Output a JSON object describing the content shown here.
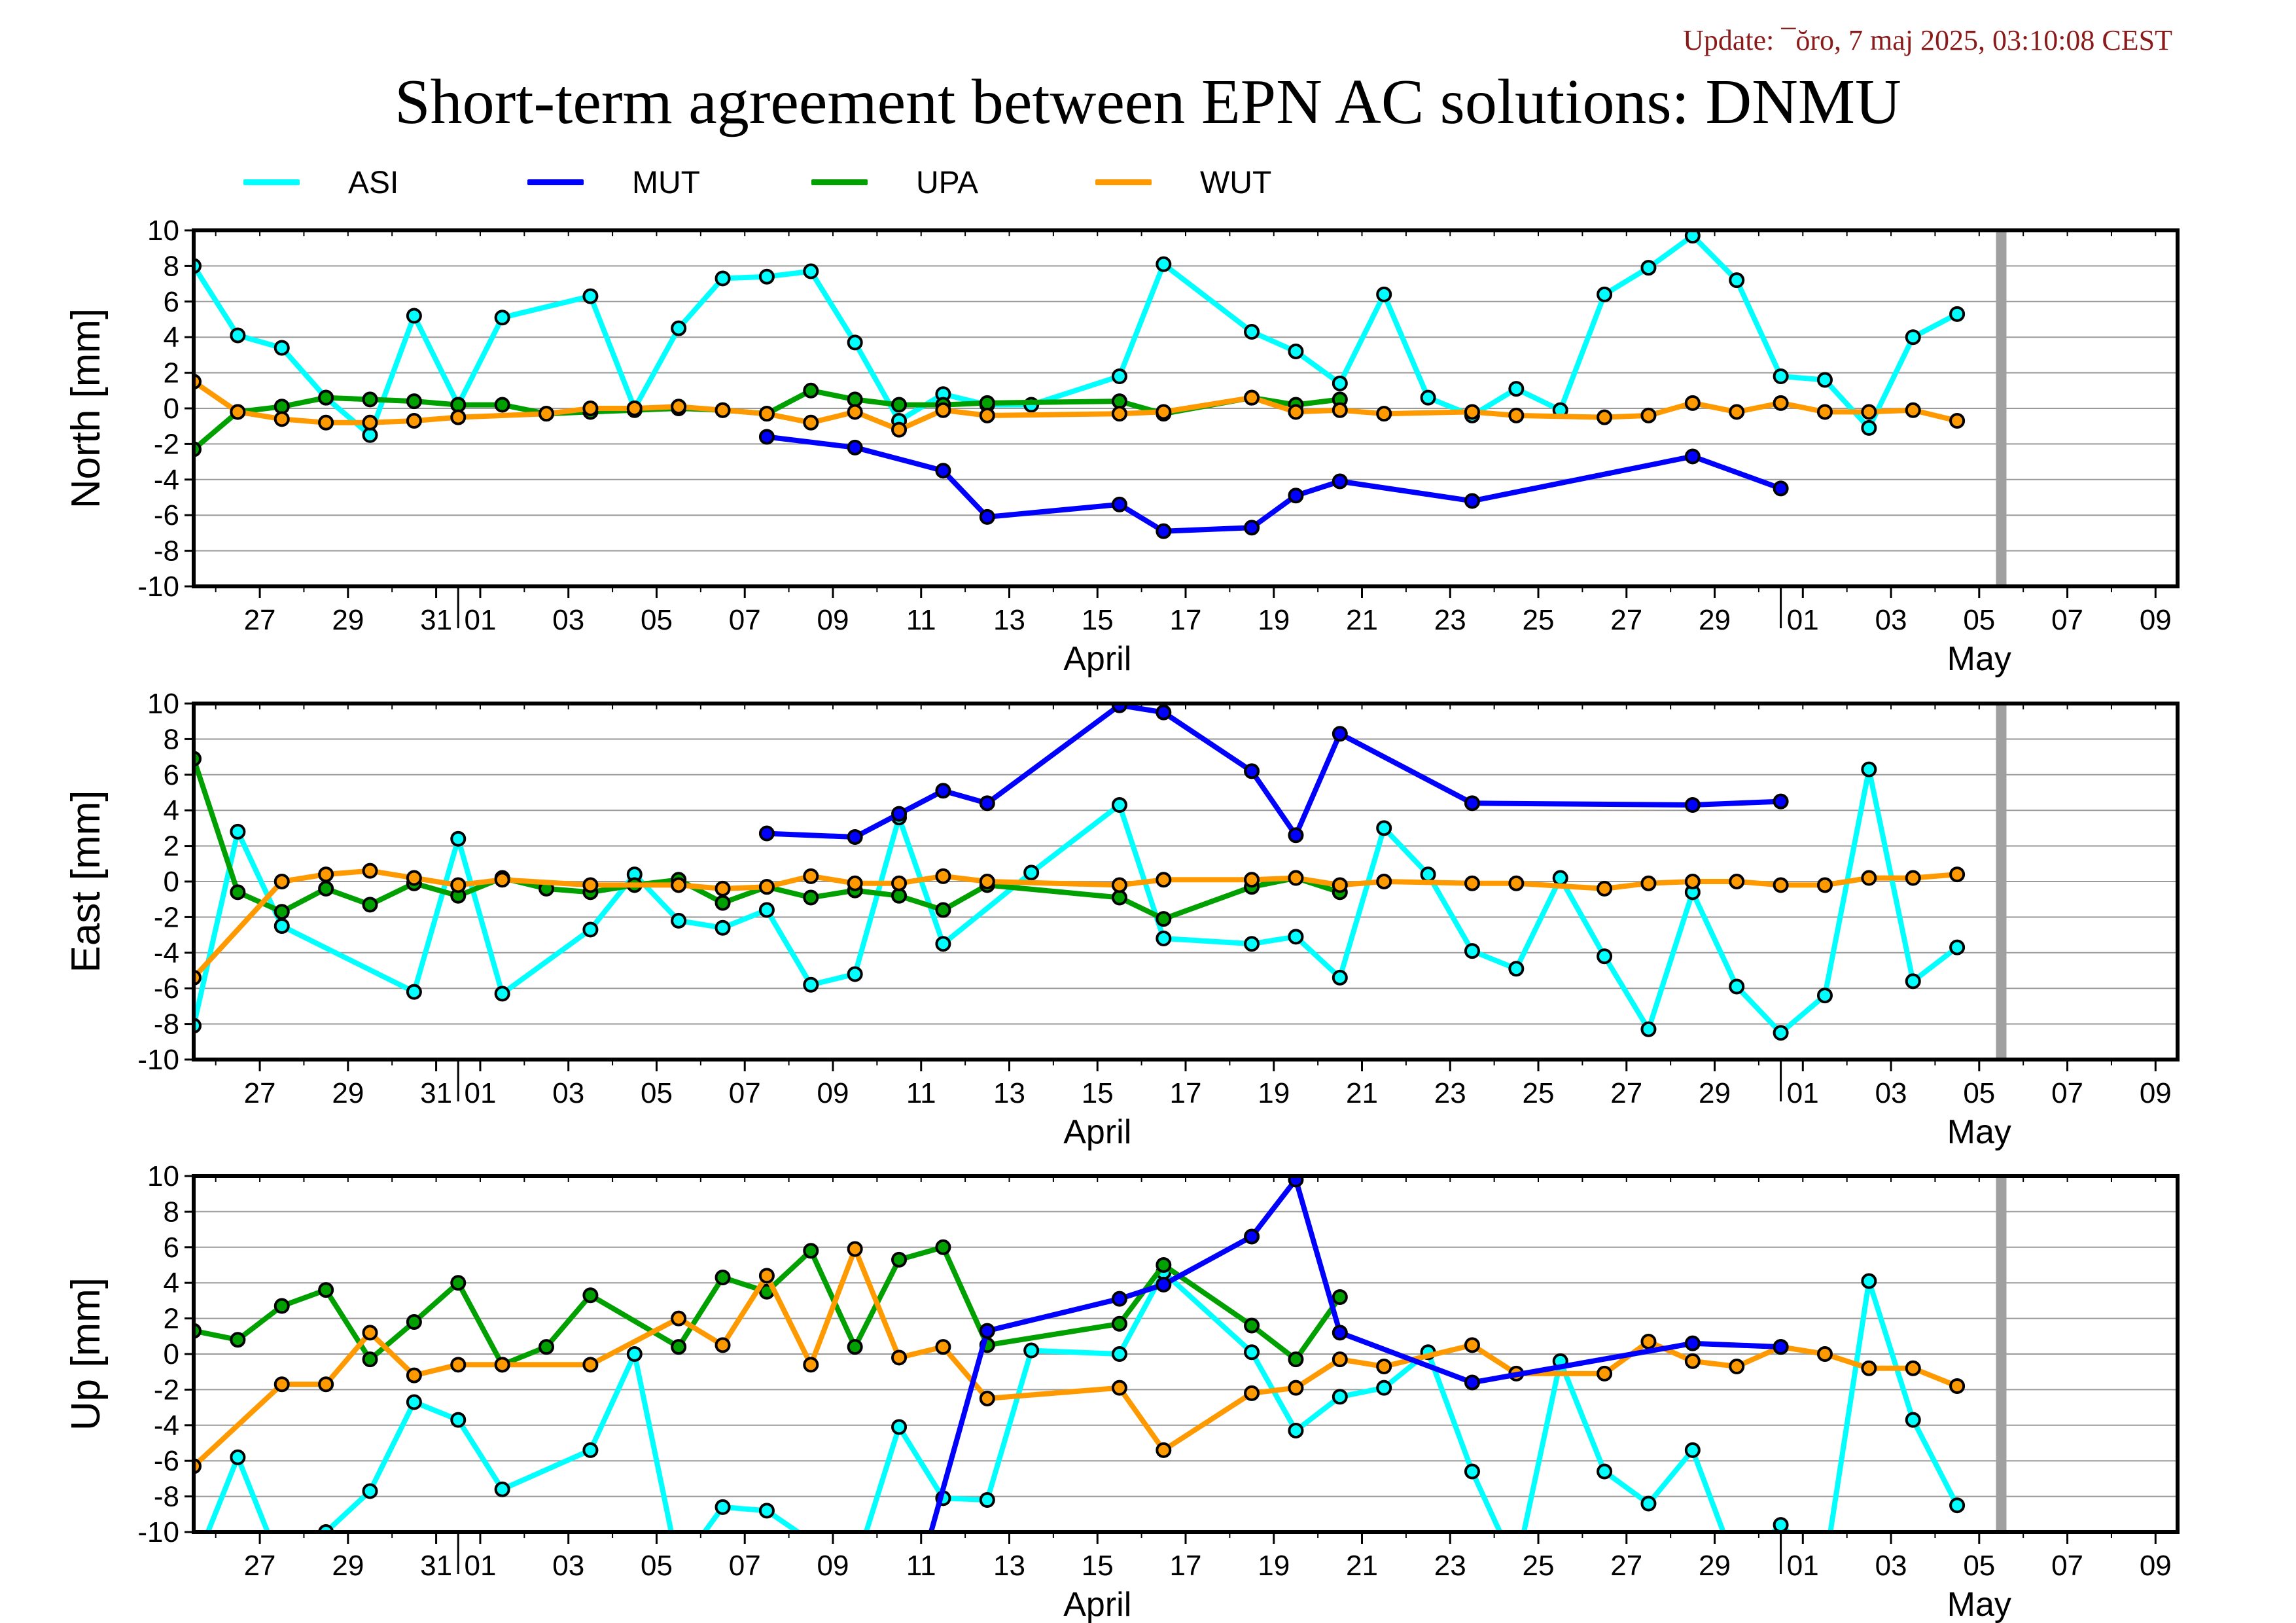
{
  "header": {
    "update_text": "Update: ¯ŏro, 7 maj 2025, 03:10:08 CEST",
    "title": "Short-term agreement between EPN AC solutions: DNMU"
  },
  "legend": [
    {
      "name": "ASI",
      "color": "#00ffff"
    },
    {
      "name": "MUT",
      "color": "#0000ff"
    },
    {
      "name": "UPA",
      "color": "#00a000"
    },
    {
      "name": "WUT",
      "color": "#ff9900"
    }
  ],
  "x_axis": {
    "ticks": [
      {
        "day": -4,
        "label": "27"
      },
      {
        "day": -2,
        "label": "29"
      },
      {
        "day": 0,
        "label": "31"
      },
      {
        "day": 1,
        "label": "01"
      },
      {
        "day": 3,
        "label": "03"
      },
      {
        "day": 5,
        "label": "05"
      },
      {
        "day": 7,
        "label": "07"
      },
      {
        "day": 9,
        "label": "09"
      },
      {
        "day": 11,
        "label": "11"
      },
      {
        "day": 13,
        "label": "13"
      },
      {
        "day": 15,
        "label": "15"
      },
      {
        "day": 17,
        "label": "17"
      },
      {
        "day": 19,
        "label": "19"
      },
      {
        "day": 21,
        "label": "21"
      },
      {
        "day": 23,
        "label": "23"
      },
      {
        "day": 25,
        "label": "25"
      },
      {
        "day": 27,
        "label": "27"
      },
      {
        "day": 29,
        "label": "29"
      },
      {
        "day": 31,
        "label": "01"
      },
      {
        "day": 33,
        "label": "03"
      },
      {
        "day": 35,
        "label": "05"
      },
      {
        "day": 37,
        "label": "07"
      },
      {
        "day": 39,
        "label": "09"
      }
    ],
    "month_labels": [
      {
        "day": 15,
        "label": "April"
      },
      {
        "day": 35,
        "label": "May"
      }
    ],
    "month_boundaries": [
      0.5,
      30.5
    ],
    "current_day_marker": 35.5
  },
  "chart_data": [
    {
      "type": "line",
      "ylabel": "North [mm]",
      "ylim": [
        -10,
        10
      ],
      "yticks": [
        10,
        8,
        6,
        4,
        2,
        0,
        -2,
        -4,
        -6,
        -8,
        -10
      ],
      "xlim": [
        -5.5,
        39.5
      ],
      "x_unit": "day (0 = 31 March 2025)",
      "series": [
        {
          "name": "ASI",
          "x": [
            -5.5,
            -4.5,
            -3.5,
            -2.5,
            -1.5,
            -0.5,
            0.5,
            1.5,
            3.5,
            4.5,
            5.5,
            6.5,
            7.5,
            8.5,
            9.5,
            10.5,
            11.5,
            12.5,
            13.5,
            15.5,
            16.5,
            18.5,
            19.5,
            20.5,
            21.5,
            22.5,
            23.5,
            24.5,
            25.5,
            26.5,
            27.5,
            28.5,
            29.5,
            30.5,
            31.5,
            32.5,
            33.5,
            34.5
          ],
          "values": [
            8.0,
            4.1,
            3.4,
            0.6,
            -1.5,
            5.2,
            0.2,
            5.1,
            6.3,
            0.0,
            4.5,
            7.3,
            7.4,
            7.7,
            3.7,
            -0.7,
            0.8,
            0.2,
            0.2,
            1.8,
            8.1,
            4.3,
            3.2,
            1.4,
            6.4,
            0.6,
            -0.4,
            1.1,
            -0.1,
            6.4,
            7.9,
            9.7,
            7.2,
            1.8,
            1.6,
            -1.1,
            4.0,
            5.3
          ]
        },
        {
          "name": "MUT",
          "x": [
            7.5,
            9.5,
            11.5,
            12.5,
            15.5,
            16.5,
            18.5,
            19.5,
            20.5,
            23.5,
            28.5,
            30.5
          ],
          "values": [
            -1.6,
            -2.2,
            -3.5,
            -6.1,
            -5.4,
            -6.9,
            -6.7,
            -4.9,
            -4.1,
            -5.2,
            -2.7,
            -4.5
          ]
        },
        {
          "name": "UPA",
          "x": [
            -5.5,
            -4.5,
            -3.5,
            -2.5,
            -1.5,
            -0.5,
            0.5,
            1.5,
            2.5,
            3.5,
            4.5,
            5.5,
            6.5,
            7.5,
            8.5,
            9.5,
            10.5,
            11.5,
            12.5,
            15.5,
            16.5,
            18.5,
            19.5,
            20.5
          ],
          "values": [
            -2.3,
            -0.2,
            0.1,
            0.6,
            0.5,
            0.4,
            0.2,
            0.2,
            -0.3,
            -0.2,
            -0.1,
            0.0,
            -0.1,
            -0.3,
            1.0,
            0.5,
            0.2,
            0.2,
            0.3,
            0.4,
            -0.3,
            0.6,
            0.2,
            0.5
          ]
        },
        {
          "name": "WUT",
          "x": [
            -5.5,
            -4.5,
            -3.5,
            -2.5,
            -1.5,
            -0.5,
            0.5,
            2.5,
            3.5,
            4.5,
            5.5,
            6.5,
            7.5,
            8.5,
            9.5,
            10.5,
            11.5,
            12.5,
            15.5,
            16.5,
            18.5,
            19.5,
            20.5,
            21.5,
            23.5,
            24.5,
            26.5,
            27.5,
            28.5,
            29.5,
            30.5,
            31.5,
            32.5,
            33.5,
            34.5
          ],
          "values": [
            1.5,
            -0.2,
            -0.6,
            -0.8,
            -0.8,
            -0.7,
            -0.5,
            -0.3,
            0.0,
            0.0,
            0.1,
            -0.1,
            -0.3,
            -0.8,
            -0.2,
            -1.2,
            -0.1,
            -0.4,
            -0.3,
            -0.2,
            0.6,
            -0.2,
            -0.1,
            -0.3,
            -0.2,
            -0.4,
            -0.5,
            -0.4,
            0.3,
            -0.2,
            0.3,
            -0.2,
            -0.2,
            -0.1,
            -0.7
          ]
        }
      ]
    },
    {
      "type": "line",
      "ylabel": "East [mm]",
      "ylim": [
        -10,
        10
      ],
      "yticks": [
        10,
        8,
        6,
        4,
        2,
        0,
        -2,
        -4,
        -6,
        -8,
        -10
      ],
      "xlim": [
        -5.5,
        39.5
      ],
      "x_unit": "day (0 = 31 March 2025)",
      "series": [
        {
          "name": "ASI",
          "x": [
            -5.5,
            -4.5,
            -3.5,
            -0.5,
            0.5,
            1.5,
            3.5,
            4.5,
            5.5,
            6.5,
            7.5,
            8.5,
            9.5,
            10.5,
            11.5,
            13.5,
            15.5,
            16.5,
            18.5,
            19.5,
            20.5,
            21.5,
            22.5,
            23.5,
            24.5,
            25.5,
            26.5,
            27.5,
            28.5,
            29.5,
            30.5,
            31.5,
            32.5,
            33.5,
            34.5
          ],
          "values": [
            -8.1,
            2.8,
            -2.5,
            -6.2,
            2.4,
            -6.3,
            -2.7,
            0.4,
            -2.2,
            -2.6,
            -1.6,
            -5.8,
            -5.2,
            3.6,
            -3.5,
            0.5,
            4.3,
            -3.2,
            -3.5,
            -3.1,
            -5.4,
            3.0,
            0.4,
            -3.9,
            -4.9,
            0.2,
            -4.2,
            -8.3,
            -0.6,
            -5.9,
            -8.5,
            -6.4,
            6.3,
            -5.6,
            -3.7
          ]
        },
        {
          "name": "MUT",
          "x": [
            7.5,
            9.5,
            10.5,
            11.5,
            12.5,
            15.5,
            16.5,
            18.5,
            19.5,
            20.5,
            23.5,
            28.5,
            30.5
          ],
          "values": [
            2.7,
            2.5,
            3.8,
            5.1,
            4.4,
            9.9,
            9.5,
            6.2,
            2.6,
            8.3,
            4.4,
            4.3,
            4.5
          ]
        },
        {
          "name": "UPA",
          "x": [
            -5.5,
            -4.5,
            -3.5,
            -2.5,
            -1.5,
            -0.5,
            0.5,
            1.5,
            2.5,
            3.5,
            4.5,
            5.5,
            6.5,
            7.5,
            8.5,
            9.5,
            10.5,
            11.5,
            12.5,
            15.5,
            16.5,
            18.5,
            19.5,
            20.5
          ],
          "values": [
            6.9,
            -0.6,
            -1.7,
            -0.4,
            -1.3,
            -0.1,
            -0.8,
            0.2,
            -0.4,
            -0.6,
            -0.2,
            0.1,
            -1.2,
            -0.3,
            -0.9,
            -0.5,
            -0.8,
            -1.6,
            -0.2,
            -0.9,
            -2.1,
            -0.3,
            0.2,
            -0.6
          ]
        },
        {
          "name": "WUT",
          "x": [
            -5.5,
            -3.5,
            -2.5,
            -1.5,
            -0.5,
            0.5,
            1.5,
            3.5,
            5.5,
            6.5,
            7.5,
            8.5,
            9.5,
            10.5,
            11.5,
            12.5,
            15.5,
            16.5,
            18.5,
            19.5,
            20.5,
            21.5,
            23.5,
            24.5,
            26.5,
            27.5,
            28.5,
            29.5,
            30.5,
            31.5,
            32.5,
            33.5,
            34.5
          ],
          "values": [
            -5.4,
            0.0,
            0.4,
            0.6,
            0.2,
            -0.2,
            0.1,
            -0.2,
            -0.2,
            -0.4,
            -0.3,
            0.3,
            -0.1,
            -0.1,
            0.3,
            0.0,
            -0.2,
            0.1,
            0.1,
            0.2,
            -0.2,
            0.0,
            -0.1,
            -0.1,
            -0.4,
            -0.1,
            0.0,
            0.0,
            -0.2,
            -0.2,
            0.2,
            0.2,
            0.4
          ]
        }
      ]
    },
    {
      "type": "line",
      "ylabel": "Up [mm]",
      "ylim": [
        -10,
        10
      ],
      "yticks": [
        10,
        8,
        6,
        4,
        2,
        0,
        -2,
        -4,
        -6,
        -8,
        -10
      ],
      "xlim": [
        -5.5,
        39.5
      ],
      "x_unit": "day (0 = 31 March 2025)",
      "series": [
        {
          "name": "ASI",
          "x": [
            -5.5,
            -4.5,
            -3.5,
            -2.5,
            -1.5,
            -0.5,
            0.5,
            1.5,
            3.5,
            4.5,
            5.5,
            6.5,
            7.5,
            8.5,
            9.5,
            10.5,
            11.5,
            12.5,
            13.5,
            15.5,
            16.5,
            18.5,
            19.5,
            20.5,
            21.5,
            22.5,
            23.5,
            24.5,
            25.5,
            26.5,
            27.5,
            28.5,
            29.5,
            30.5,
            31.5,
            32.5,
            33.5,
            34.5
          ],
          "values": [
            -12.0,
            -5.8,
            -12.0,
            -10.0,
            -7.7,
            -2.7,
            -3.7,
            -7.6,
            -5.4,
            0.0,
            -12.0,
            -8.6,
            -8.8,
            -10.5,
            -12.0,
            -4.1,
            -8.1,
            -8.2,
            0.2,
            0.0,
            4.6,
            0.1,
            -4.3,
            -2.4,
            -1.9,
            0.1,
            -6.6,
            -12.0,
            -0.4,
            -6.6,
            -8.4,
            -5.4,
            -12.0,
            -9.6,
            -12.0,
            4.1,
            -3.7,
            -8.5
          ]
        },
        {
          "name": "MUT",
          "x": [
            11.0,
            12.5,
            15.5,
            16.5,
            18.5,
            19.5,
            20.5,
            23.5,
            28.5,
            30.5
          ],
          "values": [
            -12.0,
            1.3,
            3.1,
            3.9,
            6.6,
            9.8,
            1.2,
            -1.6,
            0.6,
            0.4
          ]
        },
        {
          "name": "UPA",
          "x": [
            -5.5,
            -4.5,
            -3.5,
            -2.5,
            -1.5,
            -0.5,
            0.5,
            1.5,
            2.5,
            3.5,
            5.5,
            6.5,
            7.5,
            8.5,
            9.5,
            10.5,
            11.5,
            12.5,
            15.5,
            16.5,
            18.5,
            19.5,
            20.5
          ],
          "values": [
            1.3,
            0.8,
            2.7,
            3.6,
            -0.3,
            1.8,
            4.0,
            -0.6,
            0.4,
            3.3,
            0.4,
            4.3,
            3.5,
            5.8,
            0.4,
            5.3,
            6.0,
            0.5,
            1.7,
            5.0,
            1.6,
            -0.3,
            3.2
          ]
        },
        {
          "name": "WUT",
          "x": [
            -5.5,
            -3.5,
            -2.5,
            -1.5,
            -0.5,
            0.5,
            1.5,
            3.5,
            5.5,
            6.5,
            7.5,
            8.5,
            9.5,
            10.5,
            11.5,
            12.5,
            15.5,
            16.5,
            18.5,
            19.5,
            20.5,
            21.5,
            23.5,
            24.5,
            26.5,
            27.5,
            28.5,
            29.5,
            30.5,
            31.5,
            32.5,
            33.5,
            34.5
          ],
          "values": [
            -6.3,
            -1.7,
            -1.7,
            1.2,
            -1.2,
            -0.6,
            -0.6,
            -0.6,
            2.0,
            0.5,
            4.4,
            -0.6,
            5.9,
            -0.2,
            0.4,
            -2.5,
            -1.9,
            -5.4,
            -2.2,
            -1.9,
            -0.3,
            -0.7,
            0.5,
            -1.1,
            -1.1,
            0.7,
            -0.4,
            -0.7,
            0.4,
            0.0,
            -0.8,
            -0.8,
            -1.8
          ]
        }
      ]
    }
  ]
}
